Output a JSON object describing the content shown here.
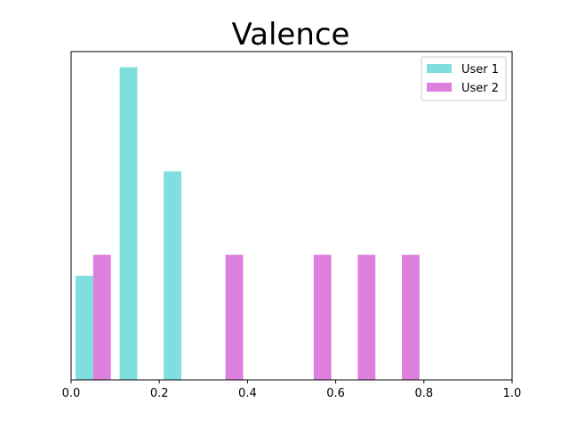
{
  "chart_data": {
    "type": "bar",
    "title": "Valence",
    "xlabel": "",
    "ylabel": "",
    "xlim": [
      0,
      1.0
    ],
    "ylim": [
      0,
      1.05
    ],
    "y_ticks_visible": false,
    "grid": false,
    "legend_position": "top-right",
    "x_ticks": [
      "0.0",
      "0.2",
      "0.4",
      "0.6",
      "0.8",
      "1.0"
    ],
    "bar_width": 0.04,
    "series": [
      {
        "name": "User 1",
        "color": "#7fdfdf",
        "points": [
          {
            "x": 0.03,
            "y": 0.333
          },
          {
            "x": 0.13,
            "y": 1.0
          },
          {
            "x": 0.23,
            "y": 0.667
          }
        ]
      },
      {
        "name": "User 2",
        "color": "#dd7fdd",
        "points": [
          {
            "x": 0.07,
            "y": 0.4
          },
          {
            "x": 0.37,
            "y": 0.4
          },
          {
            "x": 0.57,
            "y": 0.4
          },
          {
            "x": 0.67,
            "y": 0.4
          },
          {
            "x": 0.77,
            "y": 0.4
          }
        ]
      }
    ]
  }
}
